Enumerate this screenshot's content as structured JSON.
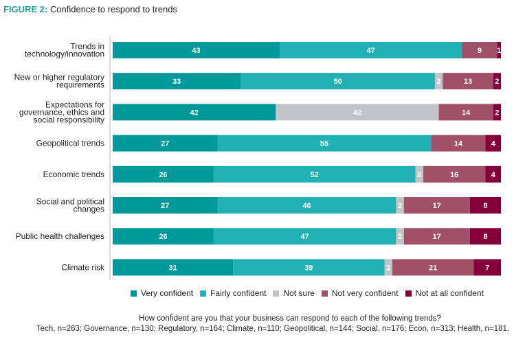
{
  "figure": {
    "number_label": "FIGURE 2:",
    "title": "Confidence to respond to trends"
  },
  "chart_data": {
    "type": "bar",
    "orientation": "horizontal",
    "stacked": true,
    "title": "Confidence to respond to trends",
    "xlabel": "",
    "ylabel": "",
    "xlim": [
      0,
      100
    ],
    "grid": false,
    "legend_position": "bottom",
    "categories": [
      "Trends in\ntechnology/innovation",
      "New or higher regulatory\nrequirements",
      "Expectations for\ngovernance, ethics and\nsocial responsibility",
      "Geopolitical trends",
      "Economic trends",
      "Social and political\nchanges",
      "Public health challenges",
      "Climate risk"
    ],
    "series": [
      {
        "name": "Very confident",
        "color": "#009999",
        "values": [
          43,
          33,
          42,
          27,
          26,
          27,
          26,
          31
        ]
      },
      {
        "name": "Fairly confident",
        "color": "#21b0b4",
        "values": [
          47,
          50,
          0,
          55,
          52,
          46,
          47,
          39
        ]
      },
      {
        "name": "Not sure",
        "color": "#c2c4c8",
        "values": [
          0,
          2,
          42,
          0,
          2,
          2,
          2,
          2
        ]
      },
      {
        "name": "Not very confident",
        "color": "#a05068",
        "values": [
          9,
          13,
          14,
          14,
          16,
          17,
          17,
          21
        ]
      },
      {
        "name": "Not at all confident",
        "color": "#850039",
        "values": [
          1,
          2,
          2,
          4,
          4,
          8,
          8,
          7
        ]
      }
    ]
  },
  "footer": {
    "question": "How confident are you that your business can respond to each of the following trends?",
    "sample_sizes": "Tech, n=263; Governance, n=130; Regulatory, n=164; Climate, n=110; Geopolitical, n=144; Social, n=176; Econ, n=313; Health, n=181."
  }
}
